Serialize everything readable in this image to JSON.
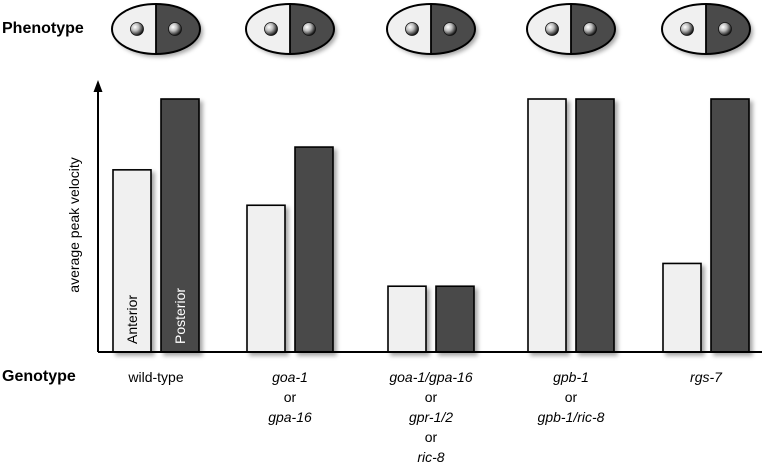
{
  "labels": {
    "phenotype": "Phenotype",
    "genotype": "Genotype"
  },
  "colors": {
    "anterior": "#f0f0f0",
    "posterior": "#4a4a4a",
    "outline": "#000000"
  },
  "chart_data": {
    "type": "bar",
    "ylabel": "average peak velocity",
    "ylim": [
      0,
      1.05
    ],
    "series": [
      {
        "name": "Anterior",
        "values": [
          0.72,
          0.58,
          0.26,
          1.0,
          0.35
        ]
      },
      {
        "name": "Posterior",
        "values": [
          1.0,
          0.81,
          0.26,
          1.0,
          1.0
        ]
      }
    ],
    "categories": [
      {
        "lines": [
          "wild-type"
        ],
        "italic": false
      },
      {
        "lines": [
          "goa-1",
          "or",
          "gpa-16"
        ],
        "italic": true
      },
      {
        "lines": [
          "goa-1/gpa-16",
          "or",
          "gpr-1/2",
          "or",
          "ric-8"
        ],
        "italic": true
      },
      {
        "lines": [
          "gpb-1",
          "or",
          "gpb-1/ric-8"
        ],
        "italic": true
      },
      {
        "lines": [
          "rgs-7"
        ],
        "italic": true
      }
    ],
    "phenotype_icons": [
      {
        "anterior": "light",
        "posterior": "dark"
      },
      {
        "anterior": "light",
        "posterior": "dark"
      },
      {
        "anterior": "light",
        "posterior": "dark"
      },
      {
        "anterior": "light",
        "posterior": "dark"
      },
      {
        "anterior": "light",
        "posterior": "dark"
      }
    ]
  }
}
